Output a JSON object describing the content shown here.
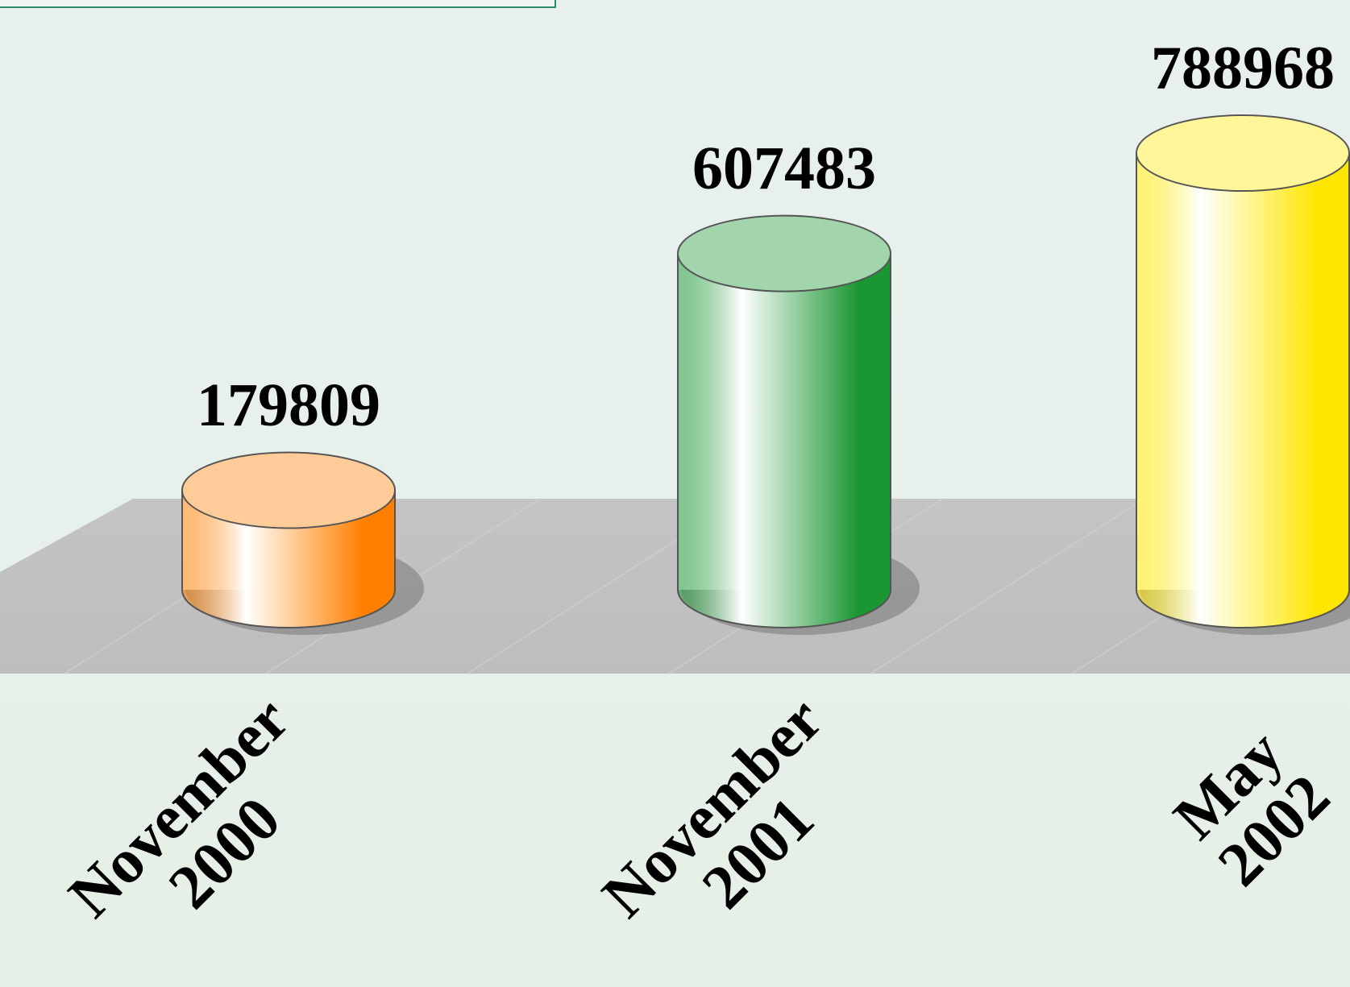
{
  "chart_data": {
    "type": "cylinder",
    "categories": [
      "November\n2000",
      "November\n2001",
      "May\n2002"
    ],
    "values": [
      179809,
      607483,
      788968
    ],
    "colors": [
      "#ff8000",
      "#1a9632",
      "#ffe600"
    ]
  }
}
